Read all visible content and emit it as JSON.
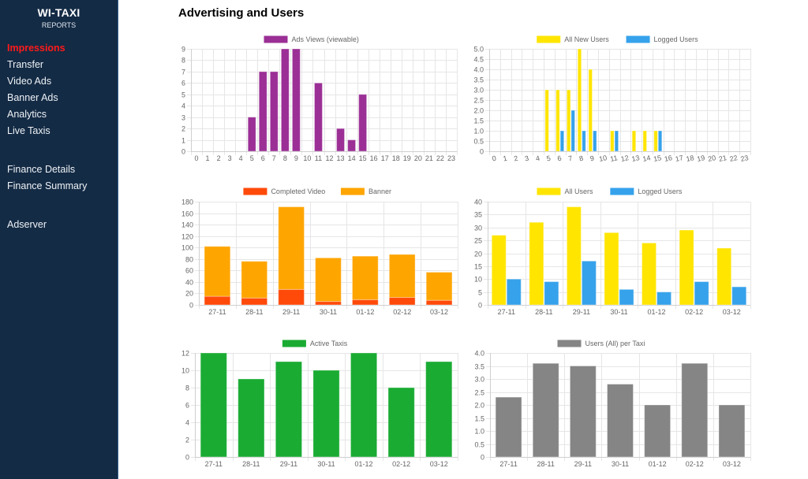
{
  "sidebar": {
    "brand_title": "WI-TAXI",
    "brand_subtitle": "REPORTS",
    "items": [
      {
        "label": "Impressions",
        "active": true
      },
      {
        "label": "Transfer",
        "active": false
      },
      {
        "label": "Video Ads",
        "active": false
      },
      {
        "label": "Banner Ads",
        "active": false
      },
      {
        "label": "Analytics",
        "active": false
      },
      {
        "label": "Live Taxis",
        "active": false
      }
    ],
    "finance_items": [
      {
        "label": "Finance Details"
      },
      {
        "label": "Finance Summary"
      }
    ],
    "other_items": [
      {
        "label": "Adserver"
      }
    ]
  },
  "page": {
    "title": "Advertising and Users"
  },
  "colors": {
    "purple": "#9b2f96",
    "yellow": "#ffe500",
    "blue": "#36a2eb",
    "red_orange": "#ff4a0a",
    "orange": "#ffa500",
    "green": "#1aab33",
    "gray": "#858585",
    "active_nav": "#ff1a1a"
  },
  "chart_data": [
    {
      "id": "ads-views",
      "type": "bar",
      "categories": [
        "0",
        "1",
        "2",
        "3",
        "4",
        "5",
        "6",
        "7",
        "8",
        "9",
        "10",
        "11",
        "12",
        "13",
        "14",
        "15",
        "16",
        "17",
        "18",
        "19",
        "20",
        "21",
        "22",
        "23"
      ],
      "series": [
        {
          "name": "Ads Views (viewable)",
          "color": "#9b2f96",
          "values": [
            0,
            0,
            0,
            0,
            0,
            3,
            7,
            7,
            9,
            9,
            0,
            6,
            0,
            2,
            1,
            5,
            0,
            0,
            0,
            0,
            0,
            0,
            0,
            0
          ]
        }
      ],
      "ylim": [
        0,
        9
      ],
      "yticks": [
        0,
        1,
        2,
        3,
        4,
        5,
        6,
        7,
        8,
        9
      ],
      "stacked": false,
      "legend": "top",
      "grid": true
    },
    {
      "id": "new-users",
      "type": "bar",
      "categories": [
        "0",
        "1",
        "2",
        "3",
        "4",
        "5",
        "6",
        "7",
        "8",
        "9",
        "10",
        "11",
        "12",
        "13",
        "14",
        "15",
        "16",
        "17",
        "18",
        "19",
        "20",
        "21",
        "22",
        "23"
      ],
      "series": [
        {
          "name": "All New Users",
          "color": "#ffe500",
          "values": [
            0,
            0,
            0,
            0,
            0,
            3,
            3,
            3,
            5,
            4,
            0,
            1,
            0,
            1,
            1,
            1,
            0,
            0,
            0,
            0,
            0,
            0,
            0,
            0
          ]
        },
        {
          "name": "Logged Users",
          "color": "#36a2eb",
          "values": [
            0,
            0,
            0,
            0,
            0,
            0,
            1,
            2,
            1,
            1,
            0,
            1,
            0,
            0,
            0,
            1,
            0,
            0,
            0,
            0,
            0,
            0,
            0,
            0
          ]
        }
      ],
      "ylim": [
        0,
        5
      ],
      "yticks": [
        "0",
        "0.5",
        "1.0",
        "1.5",
        "2.0",
        "2.5",
        "3.0",
        "3.5",
        "4.0",
        "4.5",
        "5.0"
      ],
      "stacked": false,
      "legend": "top",
      "grid": true
    },
    {
      "id": "video-banner",
      "type": "bar",
      "categories": [
        "27-11",
        "28-11",
        "29-11",
        "30-11",
        "01-12",
        "02-12",
        "03-12"
      ],
      "series": [
        {
          "name": "Completed Video",
          "color": "#ff4a0a",
          "values": [
            15,
            12,
            27,
            6,
            9,
            13,
            8
          ]
        },
        {
          "name": "Banner",
          "color": "#ffa500",
          "values": [
            87,
            64,
            144,
            76,
            76,
            75,
            49
          ]
        }
      ],
      "ylim": [
        0,
        180
      ],
      "yticks": [
        "0",
        "20",
        "40",
        "60",
        "80",
        "100",
        "120",
        "140",
        "160",
        "180"
      ],
      "stacked": true,
      "legend": "top",
      "grid": true
    },
    {
      "id": "daily-users",
      "type": "bar",
      "categories": [
        "27-11",
        "28-11",
        "29-11",
        "30-11",
        "01-12",
        "02-12",
        "03-12"
      ],
      "series": [
        {
          "name": "All Users",
          "color": "#ffe500",
          "values": [
            27,
            32,
            38,
            28,
            24,
            29,
            22
          ]
        },
        {
          "name": "Logged Users",
          "color": "#36a2eb",
          "values": [
            10,
            9,
            17,
            6,
            5,
            9,
            7
          ]
        }
      ],
      "ylim": [
        0,
        40
      ],
      "yticks": [
        "0",
        "5",
        "10",
        "15",
        "20",
        "25",
        "30",
        "35",
        "40"
      ],
      "stacked": false,
      "legend": "top",
      "grid": true
    },
    {
      "id": "active-taxis",
      "type": "bar",
      "categories": [
        "27-11",
        "28-11",
        "29-11",
        "30-11",
        "01-12",
        "02-12",
        "03-12"
      ],
      "series": [
        {
          "name": "Active Taxis",
          "color": "#1aab33",
          "values": [
            12,
            9,
            11,
            10,
            12,
            8,
            11
          ]
        }
      ],
      "ylim": [
        0,
        12
      ],
      "yticks": [
        "0",
        "2",
        "4",
        "6",
        "8",
        "10",
        "12"
      ],
      "stacked": false,
      "legend": "top",
      "grid": true
    },
    {
      "id": "users-per-taxi",
      "type": "bar",
      "categories": [
        "27-11",
        "28-11",
        "29-11",
        "30-11",
        "01-12",
        "02-12",
        "03-12"
      ],
      "series": [
        {
          "name": "Users (All) per Taxi",
          "color": "#858585",
          "values": [
            2.3,
            3.6,
            3.5,
            2.8,
            2.0,
            3.6,
            2.0
          ]
        }
      ],
      "ylim": [
        0,
        4
      ],
      "yticks": [
        "0",
        "0.5",
        "1.0",
        "1.5",
        "2.0",
        "2.5",
        "3.0",
        "3.5",
        "4.0"
      ],
      "stacked": false,
      "legend": "top",
      "grid": true
    }
  ]
}
